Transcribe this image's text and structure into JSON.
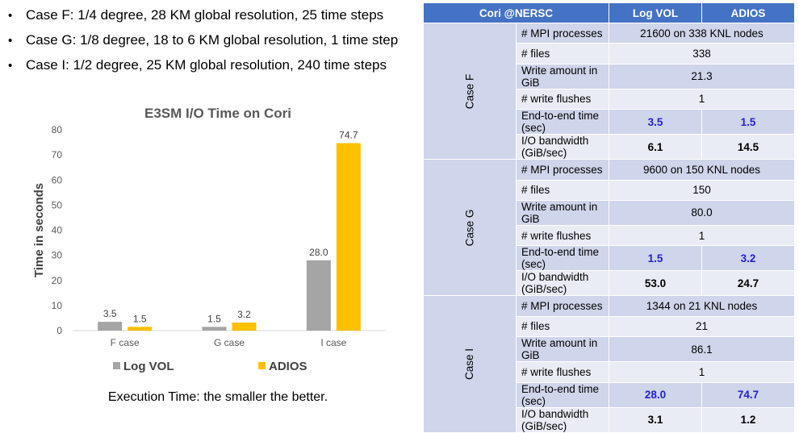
{
  "bullets": [
    "Case F: 1/4 degree, 28 KM global resolution, 25 time steps",
    "Case G:  1/8 degree, 18 to 6 KM global resolution, 1 time step",
    "Case I: 1/2 degree, 25 KM global resolution, 240 time steps"
  ],
  "bullet_marker": "•",
  "chart_data": {
    "type": "bar",
    "title": "E3SM I/O  Time on Cori",
    "ylabel": "Time in seconds",
    "xlabel": "",
    "categories": [
      "F case",
      "G case",
      "I case"
    ],
    "series": [
      {
        "name": "Log VOL",
        "values": [
          3.5,
          1.5,
          28.0
        ],
        "labels": [
          "3.5",
          "1.5",
          "28.0"
        ],
        "color": "#a5a5a5"
      },
      {
        "name": "ADIOS",
        "values": [
          1.5,
          3.2,
          74.7
        ],
        "labels": [
          "1.5",
          "3.2",
          "74.7"
        ],
        "color": "#ffc000"
      }
    ],
    "ylim": [
      0,
      80
    ],
    "yticks": [
      0,
      10,
      20,
      30,
      40,
      50,
      60,
      70,
      80
    ],
    "grid": false,
    "legend_position": "bottom"
  },
  "caption": "Execution Time: the smaller the better.",
  "table": {
    "headers": [
      "Cori @NERSC",
      "Log VOL",
      "ADIOS"
    ],
    "groups": [
      {
        "label": "Case F",
        "rows": [
          {
            "metric": "# MPI processes",
            "values": [
              "21600 on 338 KNL nodes"
            ]
          },
          {
            "metric": "# files",
            "values": [
              "338"
            ]
          },
          {
            "metric": "Write amount in GiB",
            "values": [
              "21.3"
            ]
          },
          {
            "metric": "# write flushes",
            "values": [
              "1"
            ]
          },
          {
            "metric": "End-to-end time (sec)",
            "values": [
              "3.5",
              "1.5"
            ],
            "style": "blue"
          },
          {
            "metric": "I/O bandwidth (GiB/sec)",
            "values": [
              "6.1",
              "14.5"
            ],
            "style": "bold"
          }
        ]
      },
      {
        "label": "Case G",
        "rows": [
          {
            "metric": "# MPI processes",
            "values": [
              "9600 on 150 KNL nodes"
            ]
          },
          {
            "metric": "# files",
            "values": [
              "150"
            ]
          },
          {
            "metric": "Write amount in GiB",
            "values": [
              "80.0"
            ]
          },
          {
            "metric": "# write flushes",
            "values": [
              "1"
            ]
          },
          {
            "metric": "End-to-end time (sec)",
            "values": [
              "1.5",
              "3.2"
            ],
            "style": "blue"
          },
          {
            "metric": "I/O bandwidth (GiB/sec)",
            "values": [
              "53.0",
              "24.7"
            ],
            "style": "bold"
          }
        ]
      },
      {
        "label": "Case I",
        "rows": [
          {
            "metric": "# MPI processes",
            "values": [
              "1344 on 21 KNL nodes"
            ]
          },
          {
            "metric": "# files",
            "values": [
              "21"
            ]
          },
          {
            "metric": "Write amount in GiB",
            "values": [
              "86.1"
            ]
          },
          {
            "metric": "# write flushes",
            "values": [
              "1"
            ]
          },
          {
            "metric": "End-to-end time (sec)",
            "values": [
              "28.0",
              "74.7"
            ],
            "style": "blue"
          },
          {
            "metric": "I/O bandwidth (GiB/sec)",
            "values": [
              "3.1",
              "1.2"
            ],
            "style": "bold"
          }
        ]
      }
    ]
  }
}
